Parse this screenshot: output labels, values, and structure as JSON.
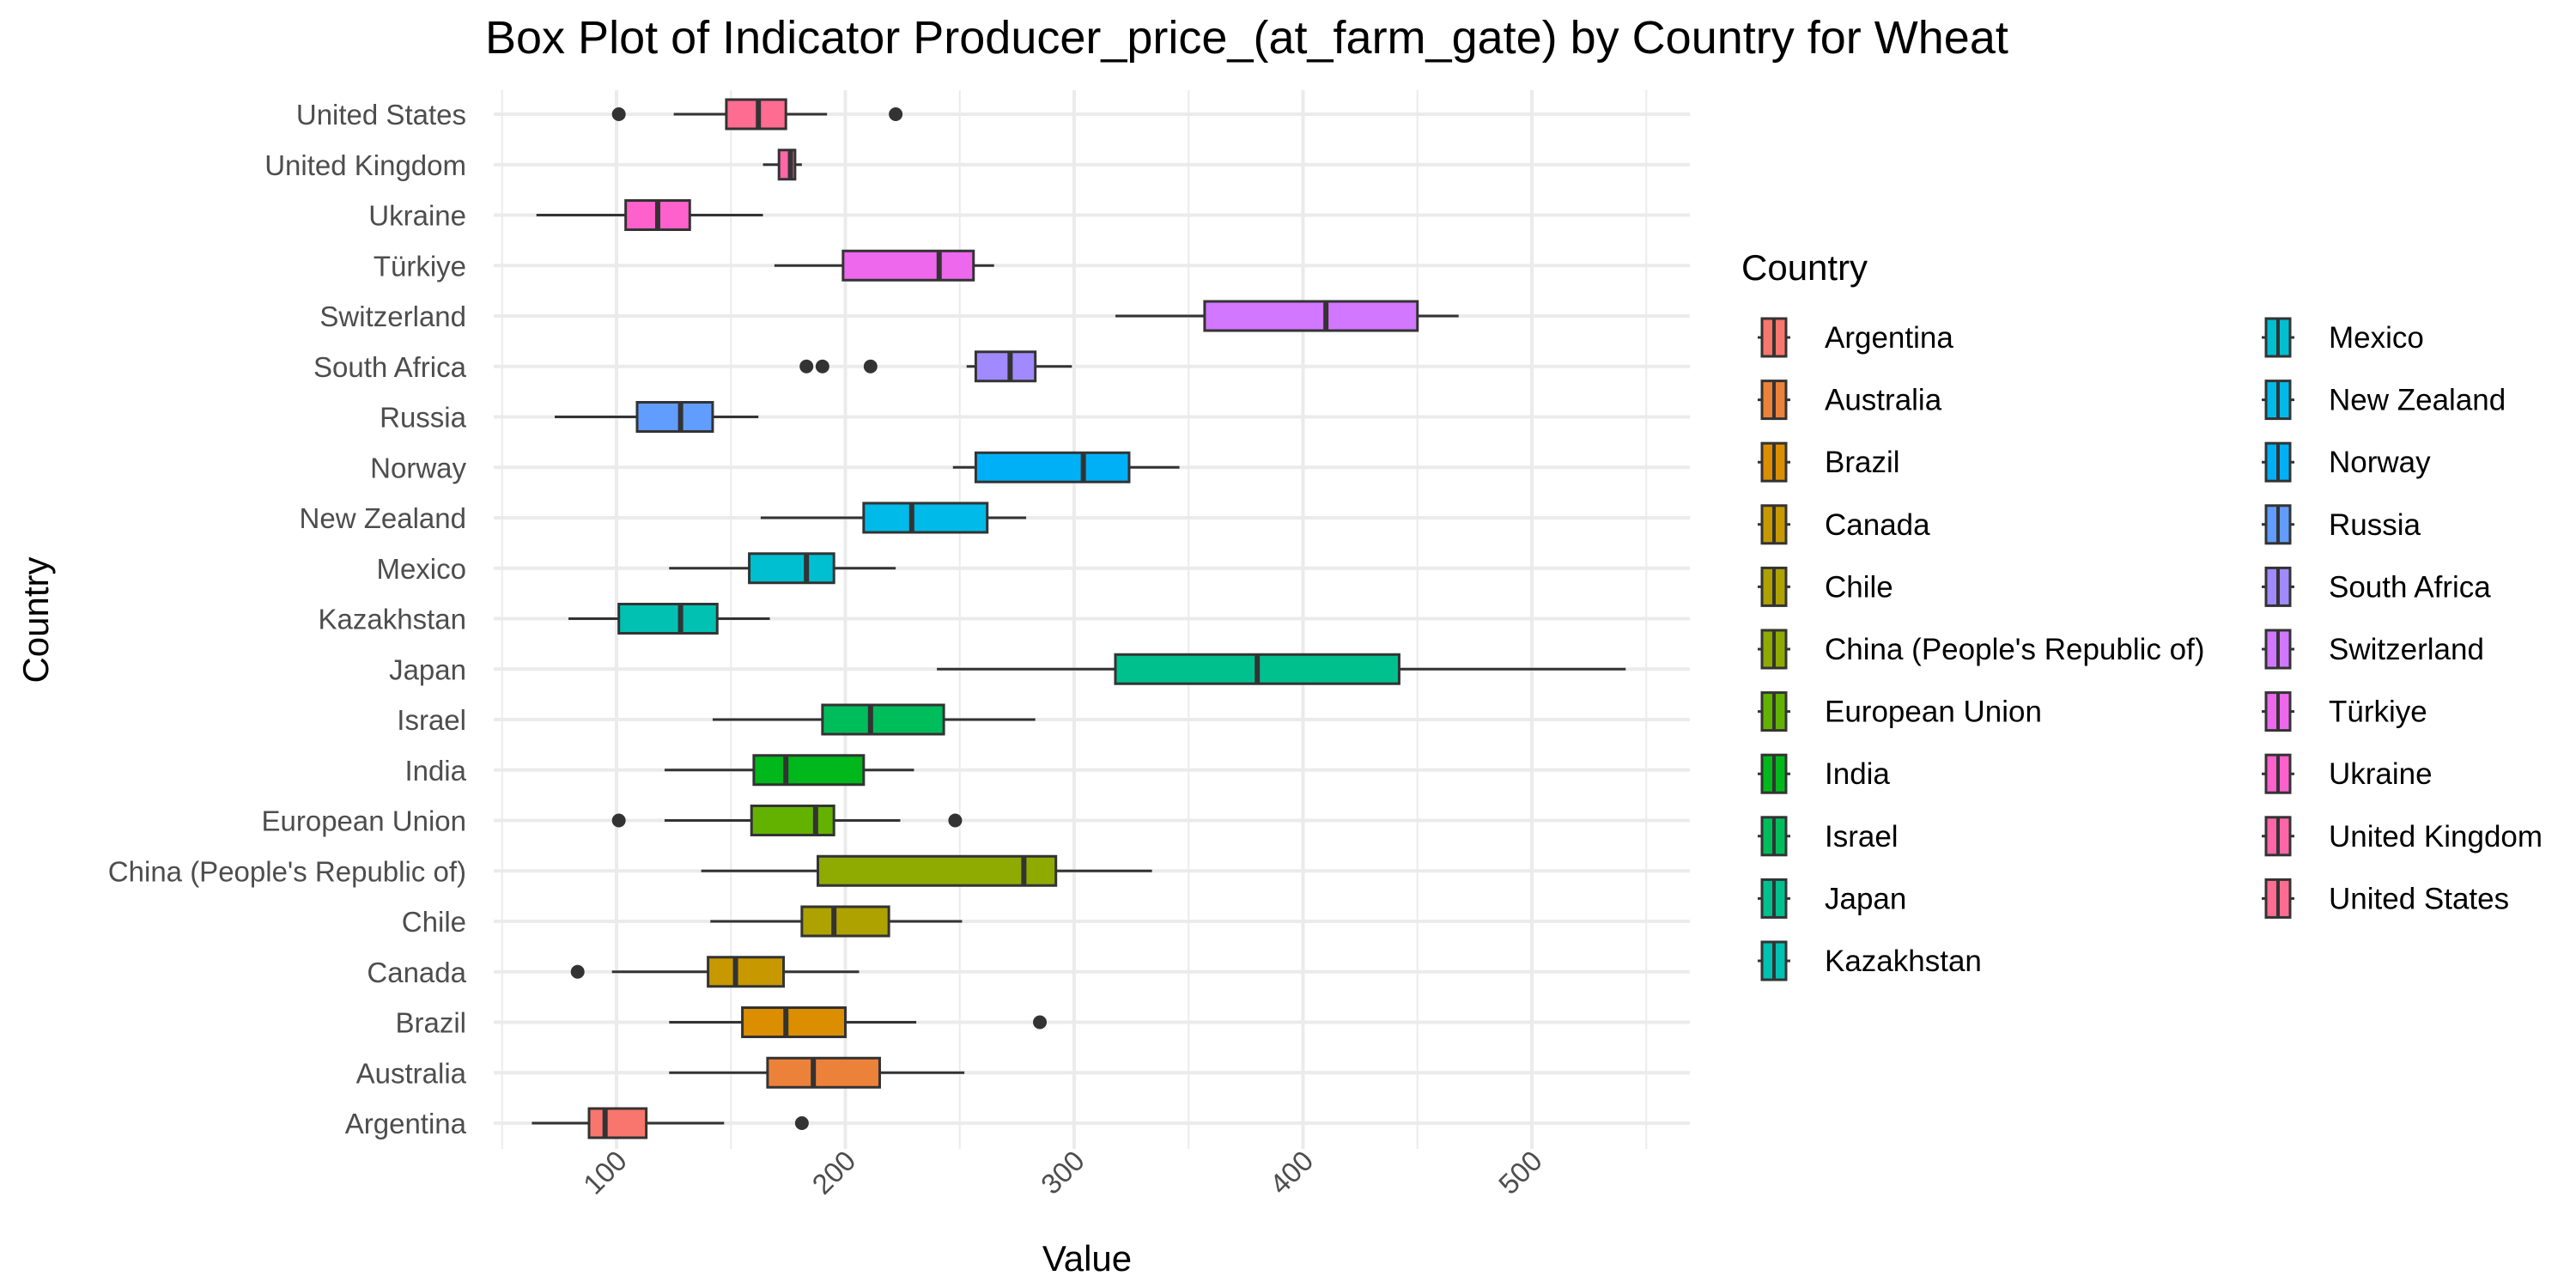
{
  "chart_data": {
    "type": "boxplot",
    "title": "Box Plot of Indicator Producer_price_(at_farm_gate) by Country for Wheat",
    "xlabel": "Value",
    "ylabel": "Country",
    "xlim": [
      40,
      560
    ],
    "x_ticks": [
      100,
      200,
      300,
      400,
      500
    ],
    "x_tick_labels": [
      "100",
      "200",
      "300",
      "400",
      "500"
    ],
    "grid": true,
    "orientation": "horizontal",
    "legend": {
      "title": "Country",
      "placement": "right",
      "entries": [
        "Argentina",
        "Australia",
        "Brazil",
        "Canada",
        "Chile",
        "China (People's Republic of)",
        "European Union",
        "India",
        "Israel",
        "Japan",
        "Kazakhstan",
        "Mexico",
        "New Zealand",
        "Norway",
        "Russia",
        "South Africa",
        "Switzerland",
        "Türkiye",
        "Ukraine",
        "United Kingdom",
        "United States"
      ]
    },
    "series": [
      {
        "category": "Argentina",
        "color": "#F8766D",
        "whisker_low": 63,
        "q1": 88,
        "median": 95,
        "q3": 113,
        "whisker_high": 147,
        "outliers": [
          181
        ]
      },
      {
        "category": "Australia",
        "color": "#EC8239",
        "whisker_low": 123,
        "q1": 166,
        "median": 186,
        "q3": 215,
        "whisker_high": 252,
        "outliers": []
      },
      {
        "category": "Brazil",
        "color": "#DB8E00",
        "whisker_low": 123,
        "q1": 155,
        "median": 174,
        "q3": 200,
        "whisker_high": 231,
        "outliers": [
          285
        ]
      },
      {
        "category": "Canada",
        "color": "#C79800",
        "whisker_low": 98,
        "q1": 140,
        "median": 152,
        "q3": 173,
        "whisker_high": 206,
        "outliers": [
          83
        ]
      },
      {
        "category": "Chile",
        "color": "#AEA200",
        "whisker_low": 141,
        "q1": 181,
        "median": 195,
        "q3": 219,
        "whisker_high": 251,
        "outliers": []
      },
      {
        "category": "China (People's Republic of)",
        "color": "#8FAA00",
        "whisker_low": 137,
        "q1": 188,
        "median": 278,
        "q3": 292,
        "whisker_high": 334,
        "outliers": []
      },
      {
        "category": "European Union",
        "color": "#64B200",
        "whisker_low": 121,
        "q1": 159,
        "median": 187,
        "q3": 195,
        "whisker_high": 224,
        "outliers": [
          101,
          248
        ]
      },
      {
        "category": "India",
        "color": "#00B81B",
        "whisker_low": 121,
        "q1": 160,
        "median": 174,
        "q3": 208,
        "whisker_high": 230,
        "outliers": []
      },
      {
        "category": "Israel",
        "color": "#00BD5C",
        "whisker_low": 142,
        "q1": 190,
        "median": 211,
        "q3": 243,
        "whisker_high": 283,
        "outliers": []
      },
      {
        "category": "Japan",
        "color": "#00C08E",
        "whisker_low": 240,
        "q1": 318,
        "median": 380,
        "q3": 442,
        "whisker_high": 541,
        "outliers": []
      },
      {
        "category": "Kazakhstan",
        "color": "#00C1B2",
        "whisker_low": 79,
        "q1": 101,
        "median": 128,
        "q3": 144,
        "whisker_high": 167,
        "outliers": []
      },
      {
        "category": "Mexico",
        "color": "#00BFD1",
        "whisker_low": 123,
        "q1": 158,
        "median": 183,
        "q3": 195,
        "whisker_high": 222,
        "outliers": []
      },
      {
        "category": "New Zealand",
        "color": "#00BAE9",
        "whisker_low": 163,
        "q1": 208,
        "median": 229,
        "q3": 262,
        "whisker_high": 279,
        "outliers": []
      },
      {
        "category": "Norway",
        "color": "#00B0F6",
        "whisker_low": 247,
        "q1": 257,
        "median": 304,
        "q3": 324,
        "whisker_high": 346,
        "outliers": []
      },
      {
        "category": "Russia",
        "color": "#619CFF",
        "whisker_low": 73,
        "q1": 109,
        "median": 128,
        "q3": 142,
        "whisker_high": 162,
        "outliers": []
      },
      {
        "category": "South Africa",
        "color": "#A18AFF",
        "whisker_low": 253,
        "q1": 257,
        "median": 272,
        "q3": 283,
        "whisker_high": 299,
        "outliers": [
          183,
          190,
          211
        ]
      },
      {
        "category": "Switzerland",
        "color": "#D277FF",
        "whisker_low": 318,
        "q1": 357,
        "median": 410,
        "q3": 450,
        "whisker_high": 468,
        "outliers": []
      },
      {
        "category": "Türkiye",
        "color": "#ED68ED",
        "whisker_low": 169,
        "q1": 199,
        "median": 241,
        "q3": 256,
        "whisker_high": 265,
        "outliers": []
      },
      {
        "category": "Ukraine",
        "color": "#FF61CC",
        "whisker_low": 65,
        "q1": 104,
        "median": 118,
        "q3": 132,
        "whisker_high": 164,
        "outliers": []
      },
      {
        "category": "United Kingdom",
        "color": "#FF66A8",
        "whisker_low": 164,
        "q1": 171,
        "median": 176,
        "q3": 178,
        "whisker_high": 181,
        "outliers": []
      },
      {
        "category": "United States",
        "color": "#FF6C91",
        "whisker_low": 125,
        "q1": 148,
        "median": 162,
        "q3": 174,
        "whisker_high": 192,
        "outliers": [
          101,
          222
        ]
      }
    ]
  }
}
